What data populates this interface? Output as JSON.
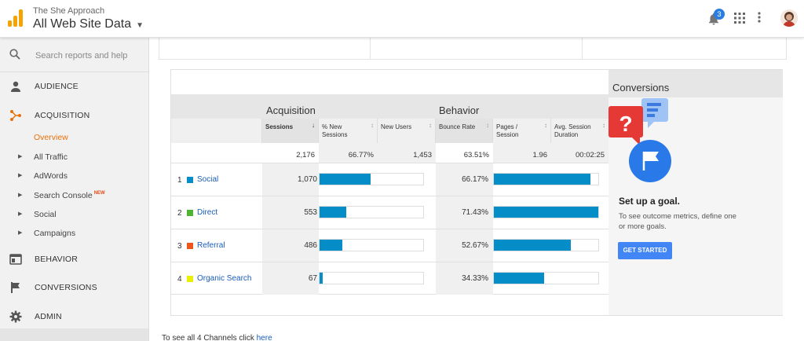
{
  "header": {
    "account_name": "The She Approach",
    "property_name": "All Web Site Data",
    "notification_count": "3"
  },
  "sidebar": {
    "search_placeholder": "Search reports and help",
    "items": [
      {
        "label": "AUDIENCE",
        "icon": "person-icon"
      },
      {
        "label": "ACQUISITION",
        "icon": "acquisition-icon"
      },
      {
        "label": "BEHAVIOR",
        "icon": "behavior-icon"
      },
      {
        "label": "CONVERSIONS",
        "icon": "flag-icon"
      },
      {
        "label": "ADMIN",
        "icon": "gear-icon"
      }
    ],
    "subitems": [
      {
        "label": "Overview",
        "active": true
      },
      {
        "label": "All Traffic"
      },
      {
        "label": "AdWords"
      },
      {
        "label": "Search Console",
        "badge": "NEW"
      },
      {
        "label": "Social"
      },
      {
        "label": "Campaigns"
      }
    ],
    "active_color": "#e8710a"
  },
  "table": {
    "group_acquisition": "Acquisition",
    "group_behavior": "Behavior",
    "columns": [
      "Sessions",
      "% New Sessions",
      "New Users",
      "Bounce Rate",
      "Pages / Session",
      "Avg. Session Duration"
    ],
    "totals": [
      "2,176",
      "66.77%",
      "1,453",
      "63.51%",
      "1.96",
      "00:02:25"
    ],
    "rows": [
      {
        "num": "1",
        "name": "Social",
        "color": "#058dc7",
        "sessions": "1,070",
        "sessions_share": 0.4917,
        "bounce": "66.17%",
        "bounce_share": 0.9264
      },
      {
        "num": "2",
        "name": "Direct",
        "color": "#50b432",
        "sessions": "553",
        "sessions_share": 0.2541,
        "bounce": "71.43%",
        "bounce_share": 1.0
      },
      {
        "num": "3",
        "name": "Referral",
        "color": "#ed561b",
        "sessions": "486",
        "sessions_share": 0.2233,
        "bounce": "52.67%",
        "bounce_share": 0.7374
      },
      {
        "num": "4",
        "name": "Organic Search",
        "color": "#edef00",
        "sessions": "67",
        "sessions_share": 0.0308,
        "bounce": "34.33%",
        "bounce_share": 0.4806
      }
    ],
    "bar_color": "#058dc7"
  },
  "conversions": {
    "title": "Conversions",
    "goal_title": "Set up a goal.",
    "goal_desc": "To see outcome metrics, define one or more goals.",
    "button": "GET STARTED"
  },
  "footer": {
    "text": "To see all 4 Channels click",
    "link": "here"
  }
}
